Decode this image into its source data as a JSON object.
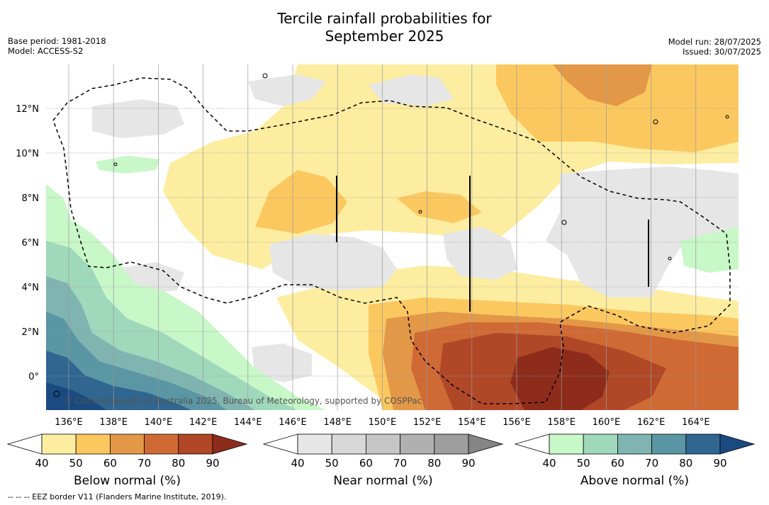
{
  "title_line1": "Tercile rainfall probabilities for",
  "title_line2": "September 2025",
  "meta": {
    "base_period": "Base period: 1981-2018",
    "model": "Model: ACCESS-S2",
    "model_run": "Model run: 28/07/2025",
    "issued": "Issued: 30/07/2025"
  },
  "map": {
    "lat_labels": [
      "12°N",
      "10°N",
      "8°N",
      "6°N",
      "4°N",
      "2°N",
      "0°"
    ],
    "lon_labels": [
      "136°E",
      "138°E",
      "140°E",
      "142°E",
      "144°E",
      "146°E",
      "148°E",
      "150°E",
      "152°E",
      "154°E",
      "156°E",
      "158°E",
      "160°E",
      "162°E",
      "164°E"
    ],
    "copyright": "© Commonwealth of Australia 2025, Bureau of Meteorology, supported by COSPPac"
  },
  "colorbars": [
    {
      "label": "Below normal (%)",
      "ticks": [
        "40",
        "50",
        "60",
        "70",
        "80",
        "90"
      ],
      "colors": [
        "#fdeda0",
        "#fbc860",
        "#e39848",
        "#d06a35",
        "#b04828",
        "#8e2c1c"
      ]
    },
    {
      "label": "Near normal (%)",
      "ticks": [
        "40",
        "50",
        "60",
        "70",
        "80",
        "90"
      ],
      "colors": [
        "#e6e6e6",
        "#d8d8d8",
        "#c6c6c6",
        "#b0b0b0",
        "#9e9e9e",
        "#858585"
      ]
    },
    {
      "label": "Above normal (%)",
      "ticks": [
        "40",
        "50",
        "60",
        "70",
        "80",
        "90"
      ],
      "colors": [
        "#c8f7c8",
        "#a0d8bc",
        "#80b4b0",
        "#5a96a4",
        "#306690",
        "#1a4a80"
      ]
    }
  ],
  "footnote": "--  --  -- EEZ border V11 (Flanders Marine Institute, 2019)."
}
